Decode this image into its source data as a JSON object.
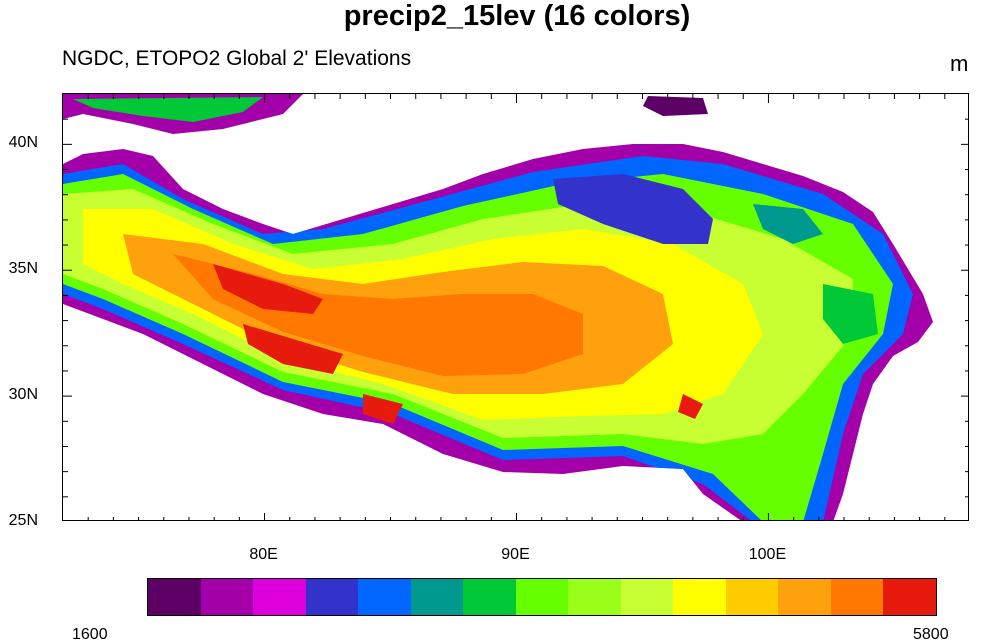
{
  "title": "precip2_15lev (16 colors)",
  "subtitle_left": "NGDC, ETOPO2 Global 2' Elevations",
  "subtitle_right": "m",
  "map": {
    "lon_range": [
      72,
      108
    ],
    "lat_range": [
      25,
      42
    ],
    "lat_labels": [
      {
        "lat": 40,
        "text": "40N"
      },
      {
        "lat": 35,
        "text": "35N"
      },
      {
        "lat": 30,
        "text": "30N"
      },
      {
        "lat": 25,
        "text": "25N"
      }
    ],
    "lon_labels": [
      {
        "lon": 80,
        "text": "80E"
      },
      {
        "lon": 90,
        "text": "90E"
      },
      {
        "lon": 100,
        "text": "100E"
      }
    ]
  },
  "colorbar": {
    "min_label": "1600",
    "max_label": "5800",
    "colors": [
      "#5c0066",
      "#a300aa",
      "#dd00dd",
      "#3333cc",
      "#0066ff",
      "#00998f",
      "#00c837",
      "#66ff00",
      "#99ff1a",
      "#c8ff33",
      "#ffff00",
      "#ffcc00",
      "#ffa10d",
      "#ff7800",
      "#e61a0d"
    ]
  }
}
